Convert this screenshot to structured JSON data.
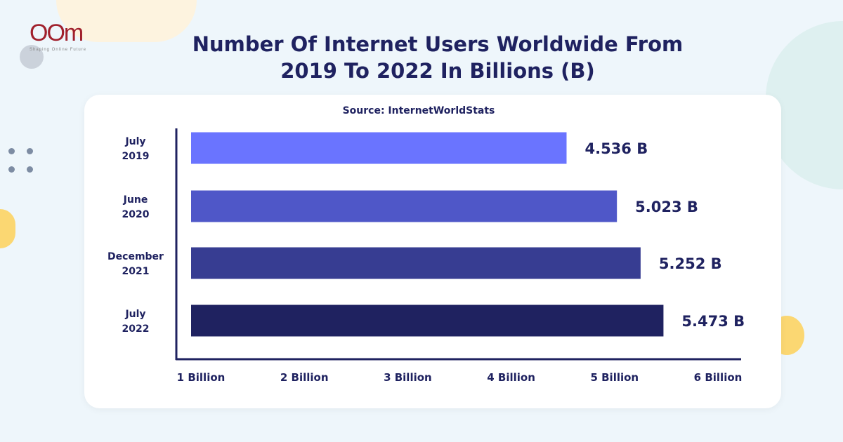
{
  "logo": {
    "text": "OOm",
    "tagline": "Shaping Online Future"
  },
  "title": {
    "line1": "Number Of Internet Users Worldwide From",
    "year_start": "2019",
    "mid": " To ",
    "year_end": "2022",
    "suffix": " In Billions (B)"
  },
  "source": "Source: InternetWorldStats",
  "chart_data": {
    "type": "bar",
    "orientation": "horizontal",
    "categories": [
      [
        "July",
        "2019"
      ],
      [
        "June",
        "2020"
      ],
      [
        "December",
        "2021"
      ],
      [
        "July",
        "2022"
      ]
    ],
    "values": [
      4.536,
      5.023,
      5.252,
      5.473
    ],
    "data_labels": [
      "4.536 B",
      "5.023 B",
      "5.252 B",
      "5.473 B"
    ],
    "x_ticks": [
      "1 Billion",
      "2 Billion",
      "3 Billion",
      "4 Billion",
      "5 Billion",
      "6 Billion"
    ],
    "xlim": [
      1,
      6
    ],
    "grid": false,
    "colors": [
      "#6a74ff",
      "#4f57c8",
      "#373d92",
      "#1f2260"
    ]
  }
}
